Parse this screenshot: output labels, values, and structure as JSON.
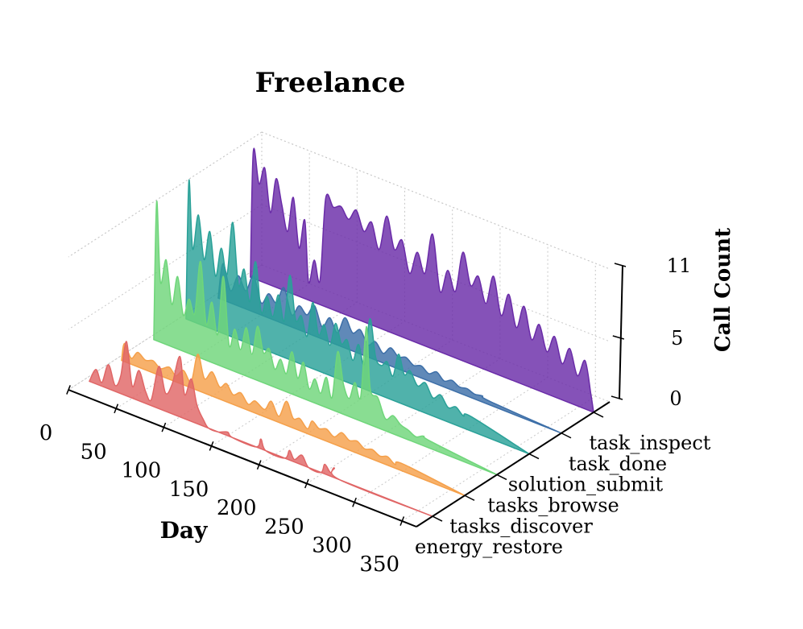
{
  "chart_data": {
    "type": "area",
    "projection": "3d-ridgeline",
    "title": "Freelance",
    "xlabel": "Day",
    "ylabel": "",
    "zlabel": "Call Count",
    "x_range": [
      0,
      365
    ],
    "z_range": [
      0,
      11
    ],
    "x_ticks": [
      0,
      50,
      100,
      150,
      200,
      250,
      300,
      350
    ],
    "z_ticks": [
      0,
      5,
      11
    ],
    "series": [
      {
        "name": "energy_restore",
        "color": "#e06666",
        "x_start": 5,
        "x_end": 365,
        "points": [
          [
            5,
            0
          ],
          [
            12,
            1.2
          ],
          [
            18,
            0.3
          ],
          [
            25,
            2.0
          ],
          [
            32,
            0.5
          ],
          [
            38,
            1.5
          ],
          [
            44,
            4.5
          ],
          [
            50,
            1.0
          ],
          [
            57,
            2.5
          ],
          [
            64,
            1.0
          ],
          [
            70,
            0.5
          ],
          [
            78,
            3.5
          ],
          [
            85,
            1.5
          ],
          [
            92,
            2.5
          ],
          [
            100,
            5.0
          ],
          [
            105,
            2.0
          ],
          [
            112,
            3.5
          ],
          [
            118,
            1.5
          ],
          [
            125,
            0.5
          ],
          [
            130,
            0
          ],
          [
            140,
            0
          ],
          [
            150,
            0.3
          ],
          [
            155,
            0
          ],
          [
            180,
            0
          ],
          [
            185,
            0.8
          ],
          [
            190,
            0
          ],
          [
            210,
            0
          ],
          [
            215,
            0.8
          ],
          [
            220,
            0.2
          ],
          [
            228,
            0.8
          ],
          [
            235,
            0
          ],
          [
            248,
            0
          ],
          [
            252,
            0.8
          ],
          [
            258,
            0.3
          ],
          [
            262,
            0.8
          ],
          [
            268,
            0
          ],
          [
            365,
            0
          ]
        ]
      },
      {
        "name": "tasks_discover",
        "color": "#f5a04a",
        "x_start": 5,
        "x_end": 365,
        "points": [
          [
            5,
            0
          ],
          [
            8,
            1.5
          ],
          [
            15,
            0.5
          ],
          [
            22,
            1.2
          ],
          [
            30,
            0.8
          ],
          [
            38,
            1.0
          ],
          [
            46,
            0.6
          ],
          [
            55,
            1.0
          ],
          [
            62,
            0.5
          ],
          [
            70,
            1.2
          ],
          [
            78,
            0.5
          ],
          [
            85,
            3.0
          ],
          [
            92,
            1.2
          ],
          [
            100,
            2.0
          ],
          [
            108,
            1.0
          ],
          [
            115,
            1.5
          ],
          [
            122,
            0.8
          ],
          [
            130,
            1.2
          ],
          [
            138,
            0.5
          ],
          [
            145,
            1.0
          ],
          [
            155,
            0.6
          ],
          [
            162,
            1.5
          ],
          [
            170,
            0.5
          ],
          [
            178,
            2.0
          ],
          [
            185,
            0.8
          ],
          [
            192,
            1.0
          ],
          [
            200,
            0.4
          ],
          [
            205,
            1.2
          ],
          [
            212,
            0.8
          ],
          [
            220,
            1.0
          ],
          [
            228,
            0.6
          ],
          [
            236,
            1.2
          ],
          [
            244,
            0.8
          ],
          [
            252,
            1.0
          ],
          [
            260,
            0.6
          ],
          [
            268,
            0.8
          ],
          [
            276,
            0.5
          ],
          [
            284,
            0.7
          ],
          [
            292,
            0.3
          ],
          [
            300,
            0.6
          ],
          [
            365,
            0
          ]
        ]
      },
      {
        "name": "tasks_browse",
        "color": "#6fd67a",
        "x_start": 5,
        "x_end": 365,
        "points": [
          [
            5,
            0
          ],
          [
            8,
            11.5
          ],
          [
            12,
            5.0
          ],
          [
            18,
            7.0
          ],
          [
            24,
            3.5
          ],
          [
            30,
            6.0
          ],
          [
            36,
            3.0
          ],
          [
            42,
            4.5
          ],
          [
            48,
            3.5
          ],
          [
            54,
            8.0
          ],
          [
            60,
            3.0
          ],
          [
            66,
            5.0
          ],
          [
            72,
            2.5
          ],
          [
            78,
            7.5
          ],
          [
            84,
            2.0
          ],
          [
            90,
            3.5
          ],
          [
            96,
            2.0
          ],
          [
            102,
            4.0
          ],
          [
            108,
            2.0
          ],
          [
            114,
            4.5
          ],
          [
            120,
            2.5
          ],
          [
            126,
            3.0
          ],
          [
            132,
            1.5
          ],
          [
            138,
            2.5
          ],
          [
            144,
            1.5
          ],
          [
            150,
            3.5
          ],
          [
            156,
            1.5
          ],
          [
            162,
            3.0
          ],
          [
            168,
            1.0
          ],
          [
            174,
            2.0
          ],
          [
            180,
            1.0
          ],
          [
            186,
            2.5
          ],
          [
            192,
            1.0
          ],
          [
            198,
            5.0
          ],
          [
            204,
            2.5
          ],
          [
            210,
            1.5
          ],
          [
            216,
            3.0
          ],
          [
            222,
            2.0
          ],
          [
            228,
            8.0
          ],
          [
            232,
            3.0
          ],
          [
            240,
            2.5
          ],
          [
            248,
            1.0
          ],
          [
            256,
            1.5
          ],
          [
            264,
            1.0
          ],
          [
            272,
            0.8
          ],
          [
            280,
            0.5
          ],
          [
            288,
            0.8
          ],
          [
            296,
            0.6
          ],
          [
            365,
            0
          ]
        ]
      },
      {
        "name": "solution_submit",
        "color": "#2aa198",
        "x_start": 5,
        "x_end": 365,
        "points": [
          [
            5,
            0
          ],
          [
            8,
            11.5
          ],
          [
            12,
            6.0
          ],
          [
            18,
            9.0
          ],
          [
            24,
            5.5
          ],
          [
            30,
            8.0
          ],
          [
            36,
            4.5
          ],
          [
            42,
            7.0
          ],
          [
            48,
            5.0
          ],
          [
            54,
            9.5
          ],
          [
            60,
            4.5
          ],
          [
            66,
            6.0
          ],
          [
            72,
            3.5
          ],
          [
            78,
            7.0
          ],
          [
            84,
            3.0
          ],
          [
            90,
            4.5
          ],
          [
            96,
            3.0
          ],
          [
            102,
            5.0
          ],
          [
            108,
            3.0
          ],
          [
            114,
            7.0
          ],
          [
            120,
            3.5
          ],
          [
            126,
            4.0
          ],
          [
            132,
            2.5
          ],
          [
            138,
            5.5
          ],
          [
            144,
            3.0
          ],
          [
            150,
            4.0
          ],
          [
            156,
            2.5
          ],
          [
            162,
            4.5
          ],
          [
            168,
            3.0
          ],
          [
            174,
            3.5
          ],
          [
            180,
            2.0
          ],
          [
            186,
            3.5
          ],
          [
            192,
            2.0
          ],
          [
            198,
            6.0
          ],
          [
            204,
            3.0
          ],
          [
            210,
            2.5
          ],
          [
            216,
            3.0
          ],
          [
            222,
            2.0
          ],
          [
            228,
            4.0
          ],
          [
            234,
            2.5
          ],
          [
            240,
            3.0
          ],
          [
            248,
            2.0
          ],
          [
            256,
            2.5
          ],
          [
            264,
            1.5
          ],
          [
            272,
            2.0
          ],
          [
            280,
            1.2
          ],
          [
            288,
            1.5
          ],
          [
            296,
            1.0
          ],
          [
            304,
            1.2
          ],
          [
            365,
            0
          ]
        ]
      },
      {
        "name": "task_done",
        "color": "#3d6fa8",
        "x_start": 5,
        "x_end": 365,
        "points": [
          [
            5,
            0
          ],
          [
            10,
            3.0
          ],
          [
            18,
            1.0
          ],
          [
            26,
            2.5
          ],
          [
            34,
            1.5
          ],
          [
            42,
            3.0
          ],
          [
            50,
            1.0
          ],
          [
            58,
            2.0
          ],
          [
            66,
            1.5
          ],
          [
            74,
            3.0
          ],
          [
            82,
            1.0
          ],
          [
            90,
            2.0
          ],
          [
            98,
            1.5
          ],
          [
            106,
            2.5
          ],
          [
            114,
            1.0
          ],
          [
            122,
            2.0
          ],
          [
            130,
            1.0
          ],
          [
            138,
            2.5
          ],
          [
            146,
            1.5
          ],
          [
            154,
            2.0
          ],
          [
            162,
            1.0
          ],
          [
            170,
            1.5
          ],
          [
            178,
            0.8
          ],
          [
            186,
            1.5
          ],
          [
            194,
            1.0
          ],
          [
            202,
            1.2
          ],
          [
            210,
            0.8
          ],
          [
            218,
            1.0
          ],
          [
            226,
            0.6
          ],
          [
            234,
            1.0
          ],
          [
            242,
            0.5
          ],
          [
            250,
            0.8
          ],
          [
            258,
            0.5
          ],
          [
            266,
            0.6
          ],
          [
            274,
            0.4
          ],
          [
            282,
            0.5
          ],
          [
            290,
            0.3
          ],
          [
            365,
            0
          ]
        ]
      },
      {
        "name": "task_inspect",
        "color": "#6a2ca8",
        "x_start": 5,
        "x_end": 365,
        "points": [
          [
            5,
            0
          ],
          [
            8,
            10.5
          ],
          [
            14,
            8.0
          ],
          [
            20,
            9.5
          ],
          [
            26,
            6.0
          ],
          [
            32,
            9.0
          ],
          [
            38,
            7.0
          ],
          [
            44,
            5.0
          ],
          [
            50,
            8.0
          ],
          [
            56,
            4.0
          ],
          [
            62,
            6.5
          ],
          [
            66,
            1.5
          ],
          [
            72,
            3.5
          ],
          [
            78,
            2.0
          ],
          [
            84,
            9.0
          ],
          [
            92,
            8.5
          ],
          [
            100,
            8.8
          ],
          [
            108,
            8.0
          ],
          [
            116,
            9.0
          ],
          [
            124,
            7.5
          ],
          [
            132,
            8.5
          ],
          [
            140,
            6.5
          ],
          [
            148,
            9.5
          ],
          [
            156,
            7.0
          ],
          [
            164,
            8.0
          ],
          [
            172,
            5.5
          ],
          [
            180,
            7.5
          ],
          [
            188,
            6.0
          ],
          [
            196,
            9.5
          ],
          [
            204,
            5.0
          ],
          [
            212,
            7.0
          ],
          [
            220,
            5.5
          ],
          [
            228,
            9.0
          ],
          [
            236,
            6.5
          ],
          [
            244,
            7.5
          ],
          [
            252,
            5.5
          ],
          [
            260,
            8.0
          ],
          [
            268,
            5.0
          ],
          [
            276,
            7.0
          ],
          [
            284,
            4.5
          ],
          [
            292,
            6.5
          ],
          [
            300,
            4.0
          ],
          [
            308,
            5.5
          ],
          [
            316,
            3.5
          ],
          [
            324,
            5.0
          ],
          [
            332,
            3.0
          ],
          [
            340,
            4.5
          ],
          [
            348,
            2.5
          ],
          [
            356,
            4.0
          ],
          [
            362,
            1.5
          ],
          [
            365,
            0
          ]
        ]
      }
    ]
  }
}
